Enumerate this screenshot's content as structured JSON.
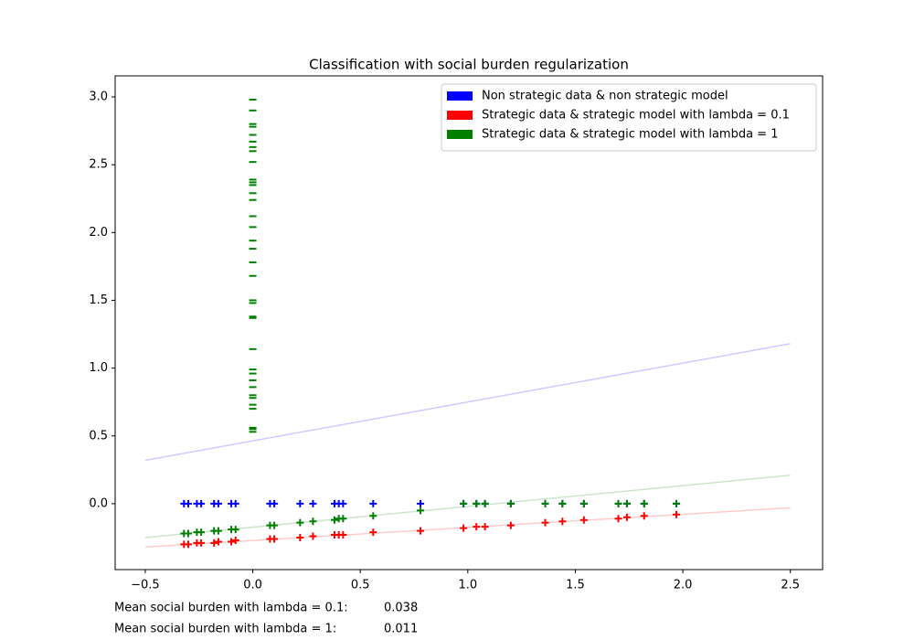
{
  "chart_data": {
    "type": "scatter",
    "title": "Classification with social burden regularization",
    "xlim": [
      -0.64,
      2.65
    ],
    "ylim": [
      -0.486,
      3.155
    ],
    "xticks": [
      {
        "value": -0.5,
        "label": "−0.5"
      },
      {
        "value": 0,
        "label": "0.0"
      },
      0.5,
      {
        "value": 1,
        "label": "1.0"
      },
      1.5,
      {
        "value": 2,
        "label": "2.0"
      },
      2.5
    ],
    "yticks": [
      {
        "value": 0,
        "label": "0.0"
      },
      0.5,
      {
        "value": 1,
        "label": "1.0"
      },
      1.5,
      {
        "value": 2,
        "label": "2.0"
      },
      2.5,
      {
        "value": 3,
        "label": "3.0"
      }
    ],
    "legend": "upper right",
    "series": [
      {
        "name": "Non strategic data & non strategic model",
        "color": "#0000ff",
        "marker": "+",
        "x": [
          -0.32,
          -0.3,
          -0.26,
          -0.24,
          -0.18,
          -0.16,
          -0.1,
          -0.08,
          0.08,
          0.1,
          0.22,
          0.28,
          0.38,
          0.4,
          0.42,
          0.56,
          0.78,
          0.98,
          1.04,
          1.08,
          1.2,
          1.36,
          1.44,
          1.54,
          1.7,
          1.74,
          1.82,
          1.97
        ],
        "values": [
          0,
          0,
          0,
          0,
          0,
          0,
          0,
          0,
          0,
          0,
          0,
          0,
          0,
          0,
          0,
          0,
          0,
          0,
          0,
          0,
          0,
          0,
          0,
          0,
          0,
          0,
          0,
          0
        ]
      },
      {
        "name": "Strategic data & strategic model with lambda = 0.1",
        "color": "#ff0000",
        "marker": "+",
        "x": [
          -0.32,
          -0.3,
          -0.26,
          -0.24,
          -0.18,
          -0.16,
          -0.1,
          -0.08,
          0.08,
          0.1,
          0.22,
          0.28,
          0.38,
          0.4,
          0.42,
          0.56,
          0.78,
          0.98,
          1.04,
          1.08,
          1.2,
          1.36,
          1.44,
          1.54,
          1.7,
          1.74,
          1.82,
          1.97
        ],
        "values": [
          -0.3,
          -0.3,
          -0.29,
          -0.29,
          -0.29,
          -0.28,
          -0.28,
          -0.27,
          -0.26,
          -0.26,
          -0.25,
          -0.24,
          -0.23,
          -0.23,
          -0.23,
          -0.21,
          -0.2,
          -0.18,
          -0.17,
          -0.17,
          -0.16,
          -0.14,
          -0.13,
          -0.12,
          -0.11,
          -0.1,
          -0.09,
          -0.08
        ]
      },
      {
        "name": "Strategic data & strategic model with lambda = 1",
        "color": "#008000",
        "marker": "+",
        "x": [
          -0.32,
          -0.3,
          -0.26,
          -0.24,
          -0.18,
          -0.16,
          -0.1,
          -0.08,
          0.08,
          0.1,
          0.22,
          0.28,
          0.38,
          0.4,
          0.42,
          0.56,
          0.78,
          0.98,
          1.04,
          1.08,
          1.2,
          1.36,
          1.44,
          1.54,
          1.7,
          1.74,
          1.82,
          1.97
        ],
        "values": [
          -0.22,
          -0.22,
          -0.21,
          -0.21,
          -0.2,
          -0.2,
          -0.19,
          -0.19,
          -0.16,
          -0.16,
          -0.14,
          -0.13,
          -0.12,
          -0.11,
          -0.11,
          -0.09,
          -0.05,
          0,
          0,
          0,
          0,
          0,
          0,
          0,
          0,
          0,
          0,
          0
        ]
      },
      {
        "color": "#008000",
        "marker": "_",
        "x": [
          0,
          0,
          0,
          0,
          0,
          0,
          0,
          0,
          0,
          0,
          0,
          0,
          0,
          0,
          0,
          0,
          0,
          0,
          0,
          0,
          0,
          0,
          0,
          0,
          0,
          0,
          0,
          0,
          0,
          0,
          0,
          0,
          0,
          0,
          0,
          0
        ],
        "values": [
          0.53,
          0.55,
          0.56,
          0.7,
          0.73,
          0.78,
          0.8,
          0.86,
          0.91,
          0.96,
          0.99,
          1.14,
          1.37,
          1.38,
          1.48,
          1.5,
          1.68,
          1.78,
          1.88,
          1.94,
          2.04,
          2.12,
          2.24,
          2.29,
          2.35,
          2.37,
          2.39,
          2.52,
          2.6,
          2.63,
          2.67,
          2.72,
          2.78,
          2.8,
          2.9,
          2.98
        ]
      }
    ],
    "lines": [
      {
        "color": "#0000ff",
        "alpha": 0.2,
        "x": [
          -0.5,
          2.5
        ],
        "values": [
          0.32,
          1.18
        ]
      },
      {
        "color": "#008000",
        "alpha": 0.2,
        "x": [
          -0.5,
          2.5
        ],
        "values": [
          -0.25,
          0.21
        ]
      },
      {
        "color": "#ff0000",
        "alpha": 0.2,
        "x": [
          -0.5,
          2.5
        ],
        "values": [
          -0.32,
          -0.03
        ]
      }
    ],
    "footer": [
      {
        "label": "Mean social burden with lambda = 0.1:",
        "value": 0.038
      },
      {
        "label": "Mean social burden with lambda = 1:",
        "value": 0.011
      }
    ]
  }
}
